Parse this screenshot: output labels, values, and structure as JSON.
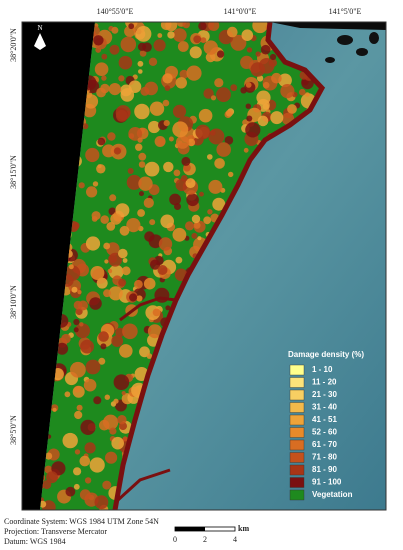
{
  "map": {
    "north": "N",
    "lon_labels": [
      "140°55'0\"E",
      "141°0'0\"E",
      "141°5'0\"E"
    ],
    "lat_labels": [
      "38°20'0\"N",
      "38°15'0\"N",
      "38°10'0\"N",
      "38°5'0\"N"
    ],
    "legend": {
      "title": "Damage density (%)",
      "items": [
        {
          "label": "1 - 10",
          "color": "#ffff8c"
        },
        {
          "label": "11 - 20",
          "color": "#fbe37a"
        },
        {
          "label": "21 - 30",
          "color": "#f7cf62"
        },
        {
          "label": "31 - 40",
          "color": "#f3b94a"
        },
        {
          "label": "41 - 51",
          "color": "#eea338"
        },
        {
          "label": "52 - 60",
          "color": "#e88a2a"
        },
        {
          "label": "61 - 70",
          "color": "#d86d22"
        },
        {
          "label": "71 - 80",
          "color": "#c4511c"
        },
        {
          "label": "81 - 90",
          "color": "#a83516"
        },
        {
          "label": "91 - 100",
          "color": "#7a1010"
        },
        {
          "label": "Vegetation",
          "color": "#1e8a1e"
        }
      ]
    },
    "scale_bar": {
      "labels": [
        "0",
        "2",
        "4"
      ],
      "unit": "km"
    }
  },
  "footer": [
    "Coordinate System: WGS 1984 UTM Zone 54N",
    "Projection: Transverse Mercator",
    "Datum: WGS 1984"
  ]
}
